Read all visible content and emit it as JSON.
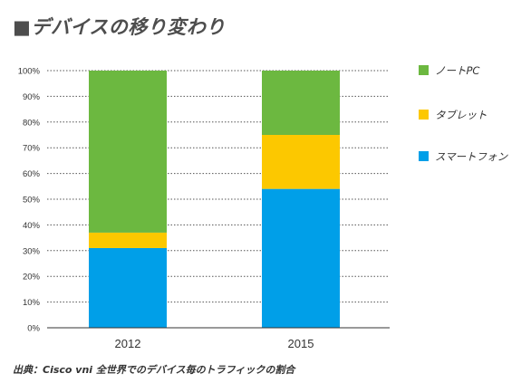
{
  "title": "■デバイスの移り変わり",
  "source": "出典：Cisco vni 全世界でのデバイス毎のトラフィックの割合",
  "chart_data": {
    "type": "bar",
    "stacked": true,
    "categories": [
      "2012",
      "2015"
    ],
    "series": [
      {
        "name": "スマートフォン",
        "color": "#009fe8",
        "values": [
          31,
          54
        ]
      },
      {
        "name": "タブレット",
        "color": "#fcc800",
        "values": [
          6,
          21
        ]
      },
      {
        "name": "ノートPC",
        "color": "#6cb840",
        "values": [
          63,
          25
        ]
      }
    ],
    "yticks": [
      "0%",
      "10%",
      "20%",
      "30%",
      "40%",
      "50%",
      "60%",
      "70%",
      "80%",
      "90%",
      "100%"
    ],
    "ylim": [
      0,
      100
    ],
    "grid": true,
    "legend_position": "right",
    "legend_order": [
      "ノートPC",
      "タブレット",
      "スマートフォン"
    ]
  }
}
